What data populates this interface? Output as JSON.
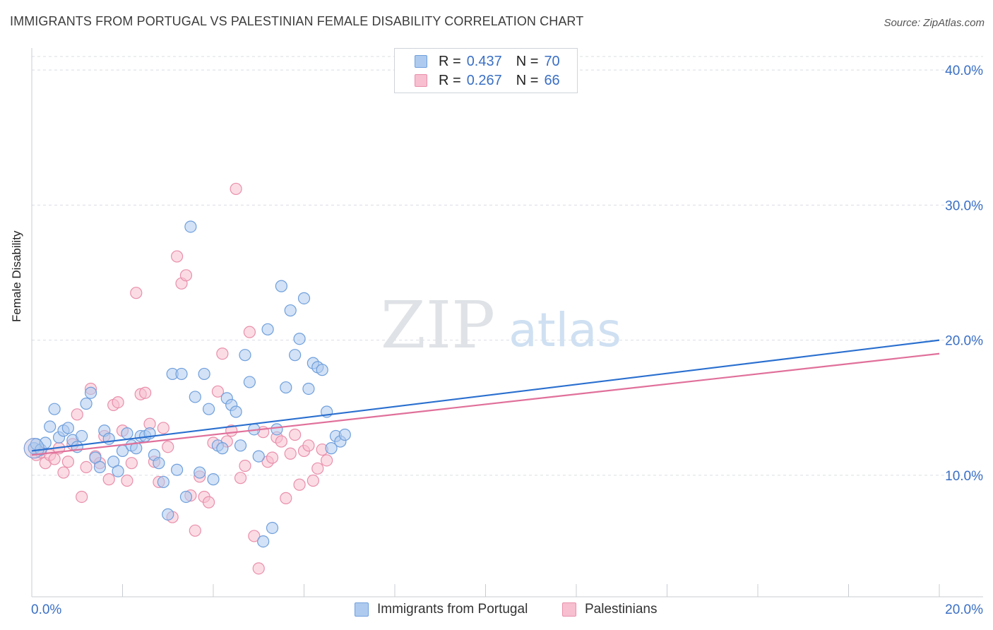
{
  "header": {
    "title": "IMMIGRANTS FROM PORTUGAL VS PALESTINIAN FEMALE DISABILITY CORRELATION CHART",
    "source": "Source: ZipAtlas.com"
  },
  "watermark": {
    "zip": "ZIP",
    "atlas": "atlas"
  },
  "legend": {
    "rows": [
      {
        "r_label": "R =",
        "r_value": "0.437",
        "n_label": "N =",
        "n_value": "70"
      },
      {
        "r_label": "R =",
        "r_value": "0.267",
        "n_label": "N =",
        "n_value": "66"
      }
    ]
  },
  "colors": {
    "blue_fill": "#aecbef",
    "blue_stroke": "#6f9fdc",
    "blue_line": "#2a6fcf",
    "pink_fill": "#f7bfd0",
    "pink_stroke": "#e98fab",
    "pink_line": "#e0709a",
    "tick_label": "#3a6fc4",
    "grid": "#d9dde2"
  },
  "chart_data": {
    "type": "scatter",
    "xlabel": "",
    "ylabel": "Female Disability",
    "xlim": [
      0,
      20
    ],
    "ylim": [
      1,
      41
    ],
    "x_tick_labels": [
      "0.0%",
      "20.0%"
    ],
    "y_ticks": [
      10,
      20,
      30,
      40
    ],
    "y_tick_labels": [
      "10.0%",
      "20.0%",
      "30.0%",
      "40.0%"
    ],
    "grid": "horizontal dashed",
    "legend_position": "top-center",
    "series": [
      {
        "name": "Immigrants from Portugal",
        "color": "blue",
        "r": 0.437,
        "n": 70,
        "trend": {
          "x": [
            0,
            20
          ],
          "y": [
            11.8,
            20
          ]
        },
        "x": [
          0.05,
          0.1,
          0.2,
          0.3,
          0.4,
          0.5,
          0.6,
          0.7,
          0.8,
          0.9,
          1.0,
          1.1,
          1.2,
          1.3,
          1.4,
          1.5,
          1.6,
          1.7,
          1.8,
          1.9,
          2.0,
          2.1,
          2.2,
          2.3,
          2.4,
          2.5,
          2.6,
          2.7,
          2.8,
          2.9,
          3.0,
          3.1,
          3.2,
          3.3,
          3.4,
          3.5,
          3.6,
          3.7,
          3.8,
          3.9,
          4.0,
          4.1,
          4.2,
          4.3,
          4.4,
          4.5,
          4.6,
          4.7,
          4.8,
          4.9,
          5.0,
          5.1,
          5.2,
          5.3,
          5.4,
          5.5,
          5.6,
          5.7,
          5.8,
          5.9,
          6.0,
          6.1,
          6.2,
          6.3,
          6.4,
          6.5,
          6.6,
          6.7,
          6.8,
          6.9
        ],
        "y": [
          12.0,
          12.3,
          11.9,
          12.4,
          13.6,
          14.9,
          12.8,
          13.3,
          13.5,
          12.6,
          12.1,
          12.9,
          15.3,
          16.1,
          11.3,
          10.6,
          13.3,
          12.7,
          11.0,
          10.3,
          11.8,
          13.1,
          12.2,
          12.0,
          12.9,
          12.9,
          13.1,
          11.5,
          10.9,
          9.5,
          7.1,
          17.5,
          10.4,
          17.5,
          8.4,
          28.4,
          15.8,
          10.2,
          17.5,
          14.9,
          9.7,
          12.2,
          12.0,
          15.7,
          15.2,
          14.7,
          12.2,
          18.9,
          16.9,
          13.4,
          11.4,
          5.1,
          20.8,
          6.1,
          13.4,
          24.0,
          16.5,
          22.2,
          18.9,
          20.1,
          23.1,
          16.4,
          18.3,
          18.0,
          17.8,
          14.7,
          12.0,
          12.9,
          12.5,
          13.0
        ]
      },
      {
        "name": "Palestinians",
        "color": "pink",
        "r": 0.267,
        "n": 66,
        "trend": {
          "x": [
            0,
            20
          ],
          "y": [
            11.5,
            19
          ]
        },
        "x": [
          0.05,
          0.1,
          0.2,
          0.3,
          0.4,
          0.5,
          0.6,
          0.7,
          0.8,
          0.9,
          1.0,
          1.1,
          1.2,
          1.3,
          1.4,
          1.5,
          1.6,
          1.7,
          1.8,
          1.9,
          2.0,
          2.1,
          2.2,
          2.3,
          2.4,
          2.5,
          2.6,
          2.7,
          2.8,
          2.9,
          3.0,
          3.1,
          3.2,
          3.3,
          3.4,
          3.5,
          3.6,
          3.7,
          3.8,
          3.9,
          4.0,
          4.1,
          4.2,
          4.3,
          4.4,
          4.5,
          4.6,
          4.7,
          4.8,
          4.9,
          5.0,
          5.1,
          5.2,
          5.3,
          5.4,
          5.5,
          5.6,
          5.7,
          5.8,
          5.9,
          6.0,
          6.1,
          6.2,
          6.3,
          6.4,
          6.5
        ],
        "y": [
          12.0,
          11.5,
          11.7,
          10.9,
          11.5,
          11.2,
          12.0,
          10.2,
          11.0,
          12.3,
          14.5,
          8.4,
          10.6,
          16.4,
          11.4,
          10.9,
          12.9,
          9.7,
          15.2,
          15.4,
          13.3,
          9.6,
          10.9,
          23.5,
          16.0,
          16.1,
          13.8,
          11.0,
          9.5,
          13.5,
          12.1,
          6.9,
          26.2,
          24.2,
          24.8,
          8.5,
          5.9,
          9.9,
          8.4,
          8.0,
          12.4,
          16.2,
          19.0,
          12.5,
          13.3,
          31.2,
          9.8,
          10.7,
          20.6,
          5.5,
          3.1,
          13.2,
          11.0,
          11.3,
          12.8,
          12.5,
          8.3,
          11.6,
          13.0,
          9.3,
          11.8,
          12.2,
          9.6,
          10.5,
          11.9,
          11.1
        ]
      }
    ]
  }
}
